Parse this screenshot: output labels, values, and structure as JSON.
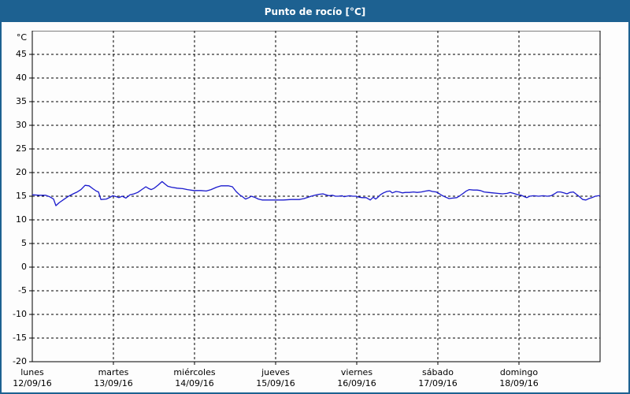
{
  "window": {
    "title": "Punto de rocío [°C]"
  },
  "colors": {
    "frame": "#1d6191",
    "titlebar_bg": "#1d6191",
    "title_text": "#ffffff",
    "line": "#1a1acd",
    "grid": "#000000",
    "plot_bg": "#fdfdfd",
    "label_text": "#000000"
  },
  "chart_data": {
    "type": "line",
    "title": "Punto de rocío [°C]",
    "grid": "dashed",
    "legend": "none",
    "y_axis": {
      "unit": "°C",
      "min": -20,
      "max": 50,
      "tick_step": 5,
      "tick_labels": [
        "45",
        "40",
        "35",
        "30",
        "25",
        "20",
        "15",
        "10",
        "5",
        "0",
        "-5",
        "-10",
        "-15",
        "-20"
      ]
    },
    "x_axis": {
      "hours_total": 168,
      "days": [
        {
          "weekday": "lunes",
          "date": "12/09/16"
        },
        {
          "weekday": "martes",
          "date": "13/09/16"
        },
        {
          "weekday": "miércoles",
          "date": "14/09/16"
        },
        {
          "weekday": "jueves",
          "date": "15/09/16"
        },
        {
          "weekday": "viernes",
          "date": "16/09/16"
        },
        {
          "weekday": "sábado",
          "date": "17/09/16"
        },
        {
          "weekday": "domingo",
          "date": "18/09/16"
        }
      ]
    },
    "series": [
      {
        "name": "Punto de rocío",
        "color": "#1a1acd",
        "points": [
          [
            0,
            15.3
          ],
          [
            2.1,
            15.2
          ],
          [
            4,
            15.2
          ],
          [
            5.1,
            14.9
          ],
          [
            6.3,
            14.4
          ],
          [
            7,
            13.0
          ],
          [
            7.9,
            13.6
          ],
          [
            9.3,
            14.3
          ],
          [
            10.5,
            14.9
          ],
          [
            12.1,
            15.5
          ],
          [
            13.3,
            15.9
          ],
          [
            14.4,
            16.4
          ],
          [
            15.6,
            17.3
          ],
          [
            16.8,
            17.2
          ],
          [
            17.9,
            16.6
          ],
          [
            18.9,
            16.1
          ],
          [
            19.6,
            15.9
          ],
          [
            20.3,
            14.3
          ],
          [
            21.9,
            14.4
          ],
          [
            23.1,
            14.8
          ],
          [
            23.8,
            15.1
          ],
          [
            24.9,
            14.9
          ],
          [
            25.6,
            14.7
          ],
          [
            26.6,
            15.0
          ],
          [
            27.7,
            14.6
          ],
          [
            28.9,
            15.3
          ],
          [
            30.1,
            15.5
          ],
          [
            31.2,
            15.8
          ],
          [
            32.4,
            16.4
          ],
          [
            33.6,
            17.0
          ],
          [
            34.5,
            16.6
          ],
          [
            35.2,
            16.4
          ],
          [
            36.1,
            16.7
          ],
          [
            37.3,
            17.4
          ],
          [
            38.4,
            18.1
          ],
          [
            39.4,
            17.5
          ],
          [
            40.1,
            17.1
          ],
          [
            41.2,
            16.9
          ],
          [
            42.9,
            16.7
          ],
          [
            44.5,
            16.6
          ],
          [
            45.9,
            16.4
          ],
          [
            47.8,
            16.2
          ],
          [
            49.9,
            16.2
          ],
          [
            51.5,
            16.1
          ],
          [
            52.9,
            16.4
          ],
          [
            54.5,
            16.9
          ],
          [
            55.9,
            17.2
          ],
          [
            58.0,
            17.2
          ],
          [
            59.2,
            17.0
          ],
          [
            60.3,
            16.0
          ],
          [
            61.5,
            15.2
          ],
          [
            62.2,
            14.9
          ],
          [
            63.1,
            14.4
          ],
          [
            64.1,
            14.7
          ],
          [
            64.8,
            15.0
          ],
          [
            65.7,
            14.8
          ],
          [
            66.9,
            14.4
          ],
          [
            68.0,
            14.2
          ],
          [
            69.7,
            14.2
          ],
          [
            71.8,
            14.2
          ],
          [
            74.3,
            14.2
          ],
          [
            76.6,
            14.3
          ],
          [
            79.0,
            14.3
          ],
          [
            80.4,
            14.5
          ],
          [
            81.3,
            14.7
          ],
          [
            82.5,
            15.0
          ],
          [
            83.6,
            15.2
          ],
          [
            84.8,
            15.4
          ],
          [
            86.0,
            15.5
          ],
          [
            86.9,
            15.3
          ],
          [
            87.8,
            15.1
          ],
          [
            88.8,
            15.2
          ],
          [
            89.7,
            15.0
          ],
          [
            90.6,
            15.0
          ],
          [
            91.6,
            15.1
          ],
          [
            92.3,
            14.9
          ],
          [
            93.0,
            15.0
          ],
          [
            93.9,
            15.1
          ],
          [
            94.8,
            15.0
          ],
          [
            95.8,
            15.0
          ],
          [
            96.7,
            14.8
          ],
          [
            97.6,
            14.7
          ],
          [
            98.8,
            14.7
          ],
          [
            100.0,
            14.2
          ],
          [
            100.9,
            14.8
          ],
          [
            101.6,
            14.4
          ],
          [
            102.3,
            14.8
          ],
          [
            103.0,
            15.3
          ],
          [
            103.9,
            15.7
          ],
          [
            104.9,
            16.0
          ],
          [
            105.8,
            16.1
          ],
          [
            106.5,
            15.7
          ],
          [
            107.6,
            16.0
          ],
          [
            108.6,
            15.9
          ],
          [
            109.5,
            15.7
          ],
          [
            110.4,
            15.8
          ],
          [
            111.6,
            15.8
          ],
          [
            112.8,
            15.9
          ],
          [
            113.9,
            15.8
          ],
          [
            115.1,
            15.9
          ],
          [
            116.5,
            16.1
          ],
          [
            117.4,
            16.2
          ],
          [
            118.4,
            16.0
          ],
          [
            119.5,
            15.9
          ],
          [
            120.5,
            15.5
          ],
          [
            121.4,
            15.1
          ],
          [
            122.3,
            14.8
          ],
          [
            123.3,
            14.5
          ],
          [
            124.4,
            14.6
          ],
          [
            125.6,
            14.7
          ],
          [
            126.5,
            15.1
          ],
          [
            127.5,
            15.6
          ],
          [
            128.4,
            16.1
          ],
          [
            129.3,
            16.4
          ],
          [
            130.5,
            16.3
          ],
          [
            131.6,
            16.3
          ],
          [
            132.6,
            16.2
          ],
          [
            133.7,
            15.9
          ],
          [
            134.9,
            15.8
          ],
          [
            136.3,
            15.7
          ],
          [
            137.7,
            15.6
          ],
          [
            139.1,
            15.5
          ],
          [
            140.5,
            15.6
          ],
          [
            141.4,
            15.8
          ],
          [
            142.4,
            15.6
          ],
          [
            143.8,
            15.3
          ],
          [
            144.7,
            15.2
          ],
          [
            145.6,
            14.9
          ],
          [
            146.3,
            14.7
          ],
          [
            147.2,
            15.0
          ],
          [
            148.4,
            15.1
          ],
          [
            149.8,
            15.0
          ],
          [
            151.2,
            15.1
          ],
          [
            152.4,
            15.0
          ],
          [
            153.5,
            15.1
          ],
          [
            154.5,
            15.5
          ],
          [
            155.4,
            15.9
          ],
          [
            156.3,
            15.9
          ],
          [
            157.3,
            15.7
          ],
          [
            158.2,
            15.5
          ],
          [
            159.1,
            15.8
          ],
          [
            160.1,
            15.9
          ],
          [
            161.0,
            15.4
          ],
          [
            161.9,
            14.9
          ],
          [
            162.9,
            14.3
          ],
          [
            163.8,
            14.2
          ],
          [
            164.7,
            14.5
          ],
          [
            165.6,
            14.7
          ],
          [
            166.6,
            15.0
          ],
          [
            167.5,
            15.1
          ],
          [
            168,
            15.1
          ]
        ]
      }
    ]
  }
}
